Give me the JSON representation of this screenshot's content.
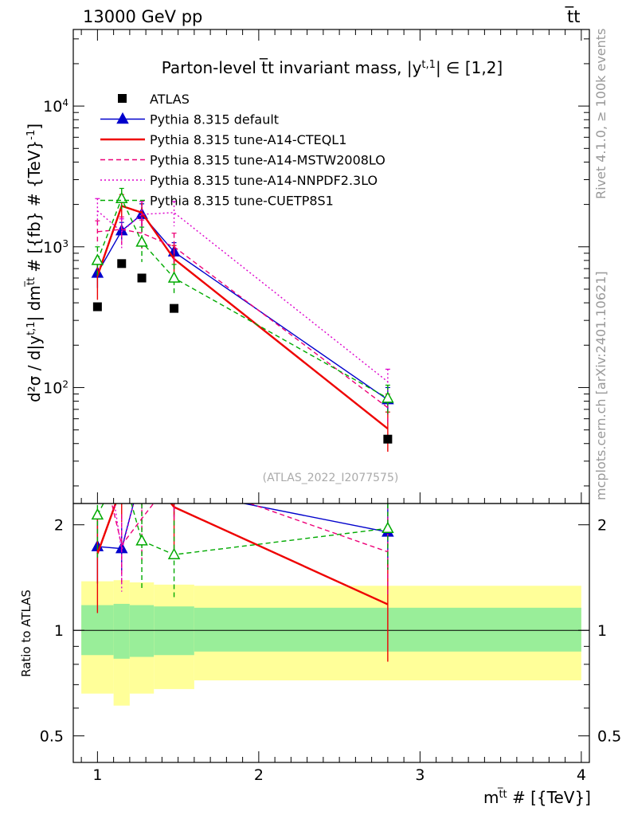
{
  "chart_data": {
    "type": "line",
    "title": "Parton-level t̅t invariant mass, |y^{t,1}| ∈ [1,2]",
    "header_left": "13000 GeV pp",
    "header_right": "t̅t",
    "side_label_top": "Rivet 4.1.0, ≥ 100k events",
    "side_label_bottom": "mcplots.cern.ch [arXiv:2401.10621]",
    "analysis_label": "(ATLAS_2022_I2077575)",
    "xlabel": "m^{t̅t} # [{TeV}]",
    "ylabel": "d²σ / d|y^{t,1}| dm^{t̅t} # [{fb} # {TeV}^{-1}]",
    "ratio_ylabel": "Ratio to ATLAS",
    "xlim": [
      0.85,
      4.05
    ],
    "ylim": [
      15,
      35000
    ],
    "ratio_ylim": [
      0.42,
      2.3
    ],
    "x_ticks": [
      "1",
      "2",
      "3",
      "4"
    ],
    "y_ticks": [
      "10^2",
      "10^3",
      "10^4"
    ],
    "ratio_ticks": [
      "0.5",
      "1",
      "2"
    ],
    "legend": [
      {
        "label": "ATLAS"
      },
      {
        "label": "Pythia 8.315 default"
      },
      {
        "label": "Pythia 8.315 tune-A14-CTEQL1"
      },
      {
        "label": "Pythia 8.315 tune-A14-MSTW2008LO"
      },
      {
        "label": "Pythia 8.315 tune-A14-NNPDF2.3LO"
      },
      {
        "label": "Pythia 8.315 tune-CUETP8S1"
      }
    ],
    "data": {
      "name": "ATLAS",
      "x": [
        1.0,
        1.15,
        1.275,
        1.475,
        2.8
      ],
      "xlow": [
        0.9,
        1.1,
        1.2,
        1.35,
        1.6
      ],
      "xhigh": [
        1.1,
        1.2,
        1.35,
        1.6,
        4.0
      ],
      "values": [
        375,
        760,
        600,
        365,
        43
      ],
      "band_inner": [
        [
          0.85,
          1.18
        ],
        [
          0.83,
          1.19
        ],
        [
          0.84,
          1.18
        ],
        [
          0.85,
          1.17
        ],
        [
          0.87,
          1.16
        ]
      ],
      "band_outer": [
        [
          0.66,
          1.38
        ],
        [
          0.61,
          1.39
        ],
        [
          0.66,
          1.37
        ],
        [
          0.68,
          1.35
        ],
        [
          0.72,
          1.34
        ]
      ]
    },
    "series": [
      {
        "name": "Pythia 8.315 default",
        "color": "#0000cc",
        "style": "solid",
        "marker": "triangle",
        "x": [
          1.0,
          1.15,
          1.275,
          1.475,
          2.8
        ],
        "values": [
          650,
          1300,
          1700,
          920,
          82
        ],
        "errors": [
          140,
          190,
          320,
          150,
          18
        ]
      },
      {
        "name": "Pythia 8.315 tune-A14-CTEQL1",
        "color": "#ee0000",
        "style": "solid",
        "marker": "none",
        "x": [
          1.0,
          1.15,
          1.275,
          1.475,
          2.8
        ],
        "values": [
          620,
          1950,
          1750,
          820,
          51
        ],
        "errors": [
          200,
          400,
          350,
          200,
          16
        ]
      },
      {
        "name": "Pythia 8.315 tune-A14-MSTW2008LO",
        "color": "#ee0077",
        "style": "dash",
        "marker": "none",
        "x": [
          1.0,
          1.15,
          1.275,
          1.475,
          2.8
        ],
        "values": [
          1280,
          1330,
          1250,
          1000,
          72
        ],
        "errors": [
          250,
          300,
          300,
          250,
          18
        ]
      },
      {
        "name": "Pythia 8.315 tune-A14-NNPDF2.3LO",
        "color": "#dd00cc",
        "style": "dot",
        "marker": "none",
        "x": [
          1.0,
          1.15,
          1.275,
          1.475,
          2.8
        ],
        "values": [
          1800,
          1280,
          1700,
          1750,
          110
        ],
        "errors": [
          400,
          300,
          400,
          350,
          25
        ]
      },
      {
        "name": "Pythia 8.315 tune-CUETP8S1",
        "color": "#00aa00",
        "style": "dash",
        "marker": "open-triangle",
        "x": [
          1.0,
          1.15,
          1.275,
          1.475,
          2.8
        ],
        "values": [
          800,
          2200,
          1080,
          600,
          84
        ],
        "errors": [
          200,
          400,
          300,
          150,
          20
        ]
      }
    ]
  }
}
